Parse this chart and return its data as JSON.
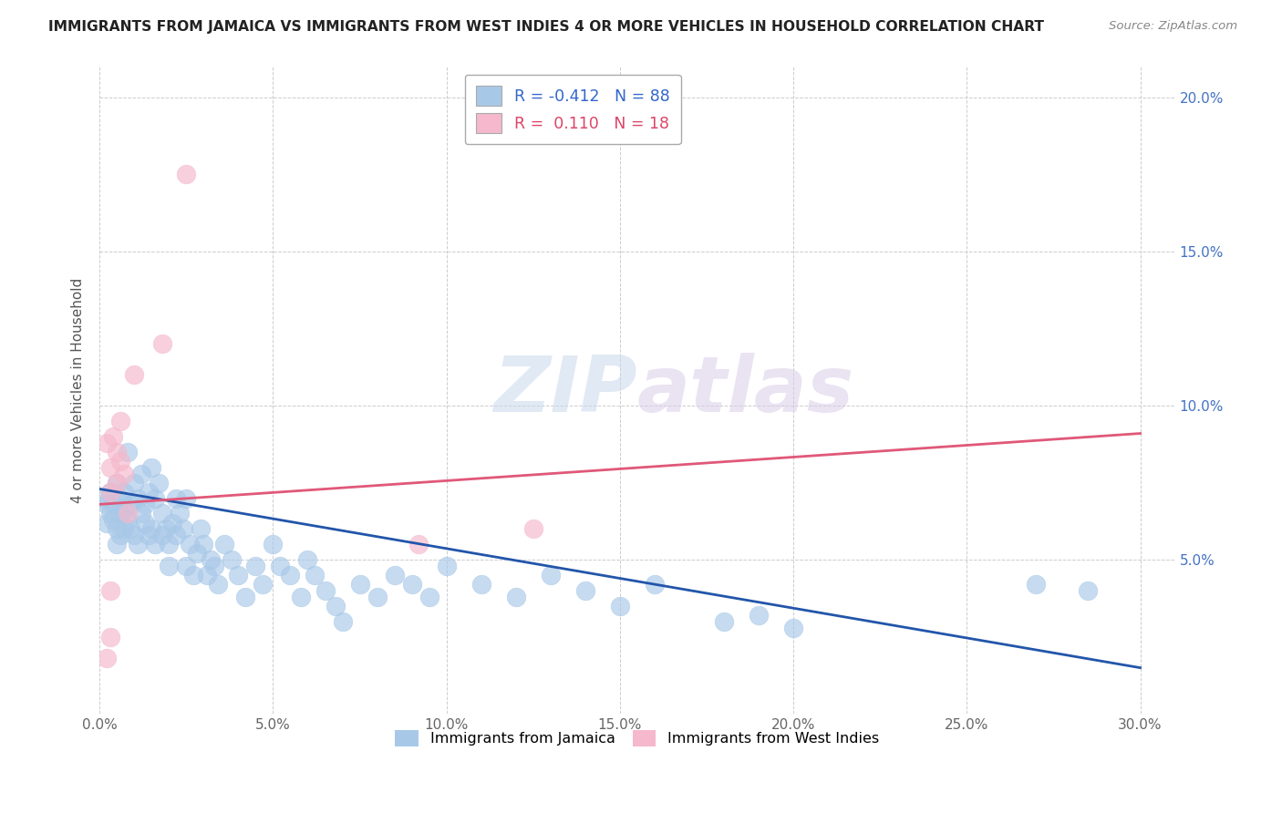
{
  "title": "IMMIGRANTS FROM JAMAICA VS IMMIGRANTS FROM WEST INDIES 4 OR MORE VEHICLES IN HOUSEHOLD CORRELATION CHART",
  "source": "Source: ZipAtlas.com",
  "ylabel": "4 or more Vehicles in Household",
  "xlim": [
    0.0,
    0.31
  ],
  "ylim": [
    0.0,
    0.21
  ],
  "xticks": [
    0.0,
    0.05,
    0.1,
    0.15,
    0.2,
    0.25,
    0.3
  ],
  "xtick_labels": [
    "0.0%",
    "5.0%",
    "10.0%",
    "15.0%",
    "20.0%",
    "25.0%",
    "30.0%"
  ],
  "yticks_right": [
    0.05,
    0.1,
    0.15,
    0.2
  ],
  "ytick_right_labels": [
    "5.0%",
    "10.0%",
    "15.0%",
    "20.0%"
  ],
  "blue_R": -0.412,
  "blue_N": 88,
  "pink_R": 0.11,
  "pink_N": 18,
  "legend_labels": [
    "Immigrants from Jamaica",
    "Immigrants from West Indies"
  ],
  "watermark_zip": "ZIP",
  "watermark_atlas": "atlas",
  "blue_color": "#a8c8e8",
  "blue_line_color": "#2255aa",
  "pink_color": "#f5b8cc",
  "pink_line_color": "#e05878",
  "blue_scatter": [
    [
      0.001,
      0.07
    ],
    [
      0.002,
      0.068
    ],
    [
      0.002,
      0.062
    ],
    [
      0.003,
      0.072
    ],
    [
      0.003,
      0.065
    ],
    [
      0.004,
      0.068
    ],
    [
      0.004,
      0.063
    ],
    [
      0.005,
      0.075
    ],
    [
      0.005,
      0.06
    ],
    [
      0.005,
      0.055
    ],
    [
      0.006,
      0.07
    ],
    [
      0.006,
      0.065
    ],
    [
      0.006,
      0.058
    ],
    [
      0.007,
      0.072
    ],
    [
      0.007,
      0.066
    ],
    [
      0.007,
      0.06
    ],
    [
      0.008,
      0.085
    ],
    [
      0.008,
      0.063
    ],
    [
      0.009,
      0.068
    ],
    [
      0.009,
      0.06
    ],
    [
      0.01,
      0.075
    ],
    [
      0.01,
      0.058
    ],
    [
      0.011,
      0.07
    ],
    [
      0.011,
      0.055
    ],
    [
      0.012,
      0.078
    ],
    [
      0.012,
      0.065
    ],
    [
      0.013,
      0.062
    ],
    [
      0.013,
      0.068
    ],
    [
      0.014,
      0.072
    ],
    [
      0.014,
      0.058
    ],
    [
      0.015,
      0.08
    ],
    [
      0.015,
      0.06
    ],
    [
      0.016,
      0.07
    ],
    [
      0.016,
      0.055
    ],
    [
      0.017,
      0.075
    ],
    [
      0.018,
      0.065
    ],
    [
      0.018,
      0.058
    ],
    [
      0.019,
      0.06
    ],
    [
      0.02,
      0.055
    ],
    [
      0.02,
      0.048
    ],
    [
      0.021,
      0.062
    ],
    [
      0.022,
      0.058
    ],
    [
      0.022,
      0.07
    ],
    [
      0.023,
      0.065
    ],
    [
      0.024,
      0.06
    ],
    [
      0.025,
      0.048
    ],
    [
      0.025,
      0.07
    ],
    [
      0.026,
      0.055
    ],
    [
      0.027,
      0.045
    ],
    [
      0.028,
      0.052
    ],
    [
      0.029,
      0.06
    ],
    [
      0.03,
      0.055
    ],
    [
      0.031,
      0.045
    ],
    [
      0.032,
      0.05
    ],
    [
      0.033,
      0.048
    ],
    [
      0.034,
      0.042
    ],
    [
      0.036,
      0.055
    ],
    [
      0.038,
      0.05
    ],
    [
      0.04,
      0.045
    ],
    [
      0.042,
      0.038
    ],
    [
      0.045,
      0.048
    ],
    [
      0.047,
      0.042
    ],
    [
      0.05,
      0.055
    ],
    [
      0.052,
      0.048
    ],
    [
      0.055,
      0.045
    ],
    [
      0.058,
      0.038
    ],
    [
      0.06,
      0.05
    ],
    [
      0.062,
      0.045
    ],
    [
      0.065,
      0.04
    ],
    [
      0.068,
      0.035
    ],
    [
      0.07,
      0.03
    ],
    [
      0.075,
      0.042
    ],
    [
      0.08,
      0.038
    ],
    [
      0.085,
      0.045
    ],
    [
      0.09,
      0.042
    ],
    [
      0.095,
      0.038
    ],
    [
      0.1,
      0.048
    ],
    [
      0.11,
      0.042
    ],
    [
      0.12,
      0.038
    ],
    [
      0.13,
      0.045
    ],
    [
      0.14,
      0.04
    ],
    [
      0.15,
      0.035
    ],
    [
      0.16,
      0.042
    ],
    [
      0.18,
      0.03
    ],
    [
      0.19,
      0.032
    ],
    [
      0.2,
      0.028
    ],
    [
      0.27,
      0.042
    ],
    [
      0.285,
      0.04
    ]
  ],
  "pink_scatter": [
    [
      0.002,
      0.088
    ],
    [
      0.003,
      0.08
    ],
    [
      0.003,
      0.072
    ],
    [
      0.004,
      0.09
    ],
    [
      0.005,
      0.075
    ],
    [
      0.005,
      0.085
    ],
    [
      0.006,
      0.095
    ],
    [
      0.006,
      0.082
    ],
    [
      0.007,
      0.078
    ],
    [
      0.008,
      0.065
    ],
    [
      0.01,
      0.11
    ],
    [
      0.018,
      0.12
    ],
    [
      0.025,
      0.175
    ],
    [
      0.002,
      0.018
    ],
    [
      0.003,
      0.04
    ],
    [
      0.092,
      0.055
    ],
    [
      0.125,
      0.06
    ],
    [
      0.003,
      0.025
    ]
  ],
  "blue_line_x": [
    0.0,
    0.3
  ],
  "blue_line_y": [
    0.073,
    0.015
  ],
  "pink_line_x": [
    0.0,
    0.3
  ],
  "pink_line_y": [
    0.068,
    0.091
  ]
}
